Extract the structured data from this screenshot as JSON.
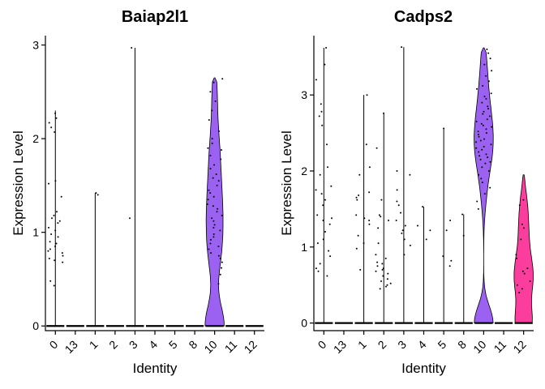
{
  "chart_data": [
    {
      "type": "violin",
      "title": "Baiap2l1",
      "xlabel": "Identity",
      "ylabel": "Expression Level",
      "categories": [
        "0",
        "13",
        "1",
        "2",
        "3",
        "4",
        "5",
        "8",
        "10",
        "11",
        "12"
      ],
      "ylim": [
        -0.05,
        3.1
      ],
      "yticks": [
        0,
        1,
        2,
        3
      ],
      "grid": false,
      "legend": "none",
      "fill_colors": {
        "10": "#9B62F2"
      },
      "series": [
        {
          "category": "0",
          "max": 2.3,
          "points": [
            2.27,
            2.22,
            2.17,
            2.12,
            2.07,
            1.55,
            1.52,
            1.38,
            1.22,
            1.18,
            1.15,
            1.12,
            1.1,
            1.05,
            1.02,
            0.98,
            0.95,
            0.9,
            0.88,
            0.85,
            0.82,
            0.8,
            0.78,
            0.75,
            0.72,
            0.7,
            0.68,
            0.48,
            0.43
          ]
        },
        {
          "category": "13",
          "max": 0,
          "points": []
        },
        {
          "category": "1",
          "max": 1.42,
          "points": [
            1.42,
            1.4
          ]
        },
        {
          "category": "2",
          "max": 0,
          "points": []
        },
        {
          "category": "3",
          "max": 2.97,
          "points": [
            2.97,
            1.15
          ]
        },
        {
          "category": "4",
          "max": 0,
          "points": []
        },
        {
          "category": "5",
          "max": 0,
          "points": []
        },
        {
          "category": "8",
          "max": 0,
          "points": []
        },
        {
          "category": "10",
          "max": 2.65,
          "points": [
            2.64,
            2.6,
            2.5,
            2.4,
            2.3,
            2.2,
            2.08,
            2.0,
            1.95,
            1.9,
            1.88,
            1.82,
            1.78,
            1.72,
            1.68,
            1.62,
            1.58,
            1.55,
            1.5,
            1.45,
            1.42,
            1.38,
            1.35,
            1.3,
            1.28,
            1.25,
            1.22,
            1.18,
            1.15,
            1.12,
            1.08,
            1.05,
            1.02,
            0.98,
            0.95,
            0.92,
            0.88,
            0.85,
            0.82,
            0.78,
            0.75,
            0.72,
            0.68,
            0.62,
            0.55,
            0.45
          ]
        },
        {
          "category": "11",
          "max": 0,
          "points": []
        },
        {
          "category": "12",
          "max": 0,
          "points": []
        }
      ]
    },
    {
      "type": "violin",
      "title": "Cadps2",
      "xlabel": "Identity",
      "ylabel": "Expression Level",
      "categories": [
        "0",
        "13",
        "1",
        "2",
        "3",
        "4",
        "5",
        "8",
        "10",
        "11",
        "12"
      ],
      "ylim": [
        -0.1,
        3.78
      ],
      "yticks": [
        0,
        1,
        2,
        3
      ],
      "grid": false,
      "legend": "none",
      "fill_colors": {
        "10": "#9B62F2",
        "12": "#FB3E9E"
      },
      "series": [
        {
          "category": "0",
          "max": 3.62,
          "points": [
            3.62,
            3.4,
            3.2,
            2.88,
            2.78,
            2.72,
            2.6,
            2.35,
            2.05,
            1.95,
            1.8,
            1.75,
            1.7,
            1.62,
            1.55,
            1.42,
            1.38,
            1.35,
            1.3,
            1.2,
            1.1,
            1.05,
            0.95,
            0.88,
            0.78,
            0.72,
            0.68,
            0.62
          ]
        },
        {
          "category": "13",
          "max": 0,
          "points": []
        },
        {
          "category": "1",
          "max": 3.0,
          "points": [
            3.0,
            2.35,
            2.05,
            1.95,
            1.72,
            1.68,
            1.65,
            1.62,
            1.42,
            1.38,
            1.35,
            1.3,
            1.15,
            1.05,
            0.98,
            0.7
          ]
        },
        {
          "category": "2",
          "max": 2.76,
          "points": [
            2.76,
            2.3,
            1.62,
            1.42,
            1.4,
            1.35,
            1.25,
            1.05,
            0.9,
            0.85,
            0.8,
            0.78,
            0.75,
            0.72,
            0.7,
            0.68,
            0.65,
            0.62,
            0.58,
            0.55,
            0.52,
            0.5,
            0.48,
            0.45
          ]
        },
        {
          "category": "3",
          "max": 3.63,
          "points": [
            3.63,
            2.0,
            1.95,
            1.75,
            1.6,
            1.55,
            1.45,
            1.35,
            1.28,
            1.22,
            1.18,
            1.1,
            1.02,
            0.9
          ]
        },
        {
          "category": "4",
          "max": 1.53,
          "points": [
            1.53,
            1.28,
            1.22,
            1.1
          ]
        },
        {
          "category": "5",
          "max": 2.56,
          "points": [
            2.56,
            1.35,
            1.22,
            0.88,
            0.82,
            0.75
          ]
        },
        {
          "category": "8",
          "max": 1.43,
          "points": [
            1.43,
            1.15
          ]
        },
        {
          "category": "10",
          "max": 3.62,
          "points": [
            3.6,
            3.55,
            3.48,
            3.4,
            3.32,
            3.25,
            3.18,
            3.12,
            3.08,
            3.02,
            2.98,
            2.95,
            2.9,
            2.85,
            2.82,
            2.78,
            2.75,
            2.72,
            2.68,
            2.65,
            2.62,
            2.6,
            2.58,
            2.55,
            2.52,
            2.5,
            2.48,
            2.45,
            2.42,
            2.4,
            2.38,
            2.35,
            2.32,
            2.3,
            2.28,
            2.25,
            2.22,
            2.2,
            2.18,
            2.15,
            2.12,
            2.1,
            2.05,
            2.0,
            1.95,
            1.9,
            1.85,
            1.78,
            1.7,
            1.6,
            1.5
          ]
        },
        {
          "category": "11",
          "max": 0,
          "points": []
        },
        {
          "category": "12",
          "max": 1.95,
          "points": [
            1.62,
            1.55,
            1.3,
            1.25,
            1.1,
            0.9,
            0.85,
            0.72,
            0.68,
            0.65,
            0.55,
            0.5,
            0.45,
            0.4
          ]
        }
      ]
    }
  ]
}
